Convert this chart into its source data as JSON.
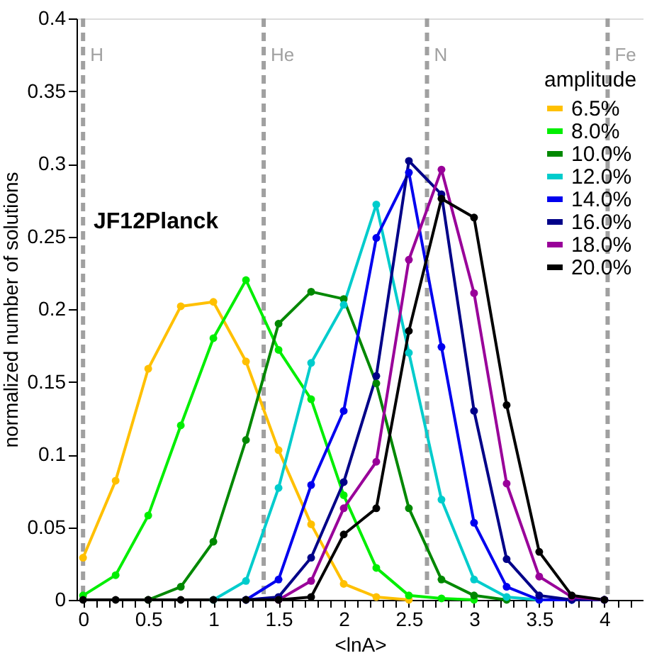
{
  "chart_data": {
    "type": "line",
    "xlabel": "<lnA>",
    "ylabel": "normalized number of solutions",
    "legend_title": "amplitude",
    "legend": "top right",
    "marker": "circle",
    "line_style": "solid",
    "grid": false,
    "annotations": [
      "JF12Planck"
    ],
    "x": [
      0,
      0.25,
      0.5,
      0.75,
      1,
      1.25,
      1.5,
      1.75,
      2,
      2.25,
      2.5,
      2.75,
      3,
      3.25,
      3.5,
      3.75,
      4
    ],
    "xlim": [
      -0.05,
      4.3
    ],
    "ylim": [
      0,
      0.4
    ],
    "xticks": [
      0,
      {
        "value": 0.1,
        "label": null
      },
      {
        "value": 0.2,
        "label": null
      },
      {
        "value": 0.3,
        "label": null
      },
      {
        "value": 0.4,
        "label": null
      },
      0.5,
      {
        "value": 0.6,
        "label": null
      },
      {
        "value": 0.7,
        "label": null
      },
      {
        "value": 0.8,
        "label": null
      },
      {
        "value": 0.9,
        "label": null
      },
      1,
      {
        "value": 1.1,
        "label": null
      },
      {
        "value": 1.2,
        "label": null
      },
      {
        "value": 1.3,
        "label": null
      },
      {
        "value": 1.4,
        "label": null
      },
      1.5,
      {
        "value": 1.6,
        "label": null
      },
      {
        "value": 1.7,
        "label": null
      },
      {
        "value": 1.8,
        "label": null
      },
      {
        "value": 1.9,
        "label": null
      },
      2,
      {
        "value": 2.1,
        "label": null
      },
      {
        "value": 2.2,
        "label": null
      },
      {
        "value": 2.3,
        "label": null
      },
      {
        "value": 2.4,
        "label": null
      },
      2.5,
      {
        "value": 2.6,
        "label": null
      },
      {
        "value": 2.7,
        "label": null
      },
      {
        "value": 2.8,
        "label": null
      },
      {
        "value": 2.9,
        "label": null
      },
      3,
      {
        "value": 3.1,
        "label": null
      },
      {
        "value": 3.2,
        "label": null
      },
      {
        "value": 3.3,
        "label": null
      },
      {
        "value": 3.4,
        "label": null
      },
      3.5,
      {
        "value": 3.6,
        "label": null
      },
      {
        "value": 3.7,
        "label": null
      },
      {
        "value": 3.8,
        "label": null
      },
      {
        "value": 3.9,
        "label": null
      },
      4,
      {
        "value": 4.1,
        "label": null
      },
      {
        "value": 4.2,
        "label": null
      }
    ],
    "yticks": [
      0,
      0.05,
      0.1,
      0.15,
      0.2,
      0.25,
      0.3,
      0.35,
      0.4
    ],
    "ref_lines": [
      {
        "axis": "x",
        "value": 0,
        "label": "H",
        "color": "#a0a0a0",
        "line_style": "dashed"
      },
      {
        "axis": "x",
        "value": 1.386,
        "label": "He",
        "color": "#a0a0a0",
        "line_style": "dashed"
      },
      {
        "axis": "x",
        "value": 2.639,
        "label": "N",
        "color": "#a0a0a0",
        "line_style": "dashed"
      },
      {
        "axis": "x",
        "value": 4.025,
        "label": "Fe",
        "color": "#a0a0a0",
        "line_style": "dashed"
      }
    ],
    "series": [
      {
        "name": "6.5%",
        "color": "#ffc000",
        "values": [
          0.029,
          0.082,
          0.159,
          0.202,
          0.205,
          0.164,
          0.103,
          0.052,
          0.011,
          0.002,
          0,
          null,
          null,
          null,
          null,
          null,
          null
        ]
      },
      {
        "name": "8.0%",
        "color": "#00ee00",
        "values": [
          0.003,
          0.017,
          0.058,
          0.12,
          0.18,
          0.22,
          0.172,
          0.138,
          0.072,
          0.022,
          0.003,
          0.001,
          0,
          null,
          null,
          null,
          null
        ]
      },
      {
        "name": "10.0%",
        "color": "#008800",
        "values": [
          null,
          null,
          0,
          0.009,
          0.04,
          0.11,
          0.19,
          0.212,
          0.207,
          0.149,
          0.063,
          0.014,
          0.003,
          0,
          null,
          null,
          null
        ]
      },
      {
        "name": "12.0%",
        "color": "#00cccc",
        "values": [
          null,
          null,
          null,
          null,
          0,
          0.013,
          0.077,
          0.163,
          0.203,
          0.272,
          0.17,
          0.069,
          0.014,
          0.002,
          0,
          0,
          0
        ]
      },
      {
        "name": "14.0%",
        "color": "#0000ee",
        "values": [
          null,
          null,
          null,
          null,
          null,
          0,
          0.014,
          0.079,
          0.13,
          0.249,
          0.294,
          0.174,
          0.053,
          0.009,
          0,
          0,
          0
        ]
      },
      {
        "name": "16.0%",
        "color": "#000088",
        "values": [
          null,
          null,
          null,
          null,
          null,
          0,
          0.002,
          0.029,
          0.081,
          0.154,
          0.302,
          0.279,
          0.13,
          0.028,
          0.003,
          0,
          0
        ]
      },
      {
        "name": "18.0%",
        "color": "#990099",
        "values": [
          null,
          null,
          null,
          null,
          null,
          null,
          0,
          0.013,
          0.063,
          0.095,
          0.234,
          0.296,
          0.211,
          0.08,
          0.016,
          0.002,
          0
        ]
      },
      {
        "name": "20.0%",
        "color": "#000000",
        "values": [
          0,
          0,
          0,
          0,
          0,
          0,
          0,
          0.002,
          0.045,
          0.063,
          0.185,
          0.276,
          0.263,
          0.134,
          0.033,
          0.003,
          0
        ]
      }
    ]
  }
}
